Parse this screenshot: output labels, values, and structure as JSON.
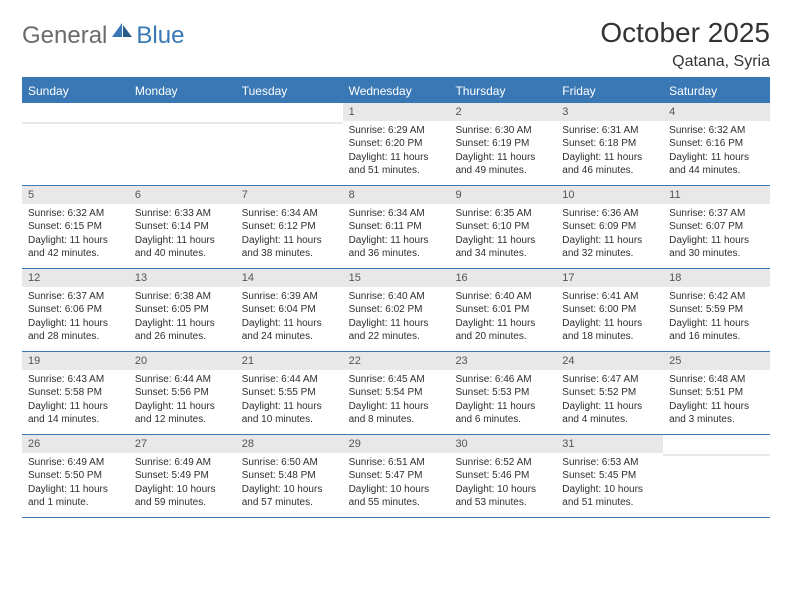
{
  "colors": {
    "header_blue": "#3a78b5",
    "logo_gray": "#6b6b6b",
    "text": "#2f2f2f",
    "daynum_bg": "#e8e8e8",
    "daynum_text": "#555555",
    "background": "#ffffff"
  },
  "logo": {
    "text_general": "General",
    "text_blue": "Blue"
  },
  "title": "October 2025",
  "location": "Qatana, Syria",
  "weekdays": [
    "Sunday",
    "Monday",
    "Tuesday",
    "Wednesday",
    "Thursday",
    "Friday",
    "Saturday"
  ],
  "weeks": [
    [
      {
        "num": "",
        "sunrise": "",
        "sunset": "",
        "daylight": ""
      },
      {
        "num": "",
        "sunrise": "",
        "sunset": "",
        "daylight": ""
      },
      {
        "num": "",
        "sunrise": "",
        "sunset": "",
        "daylight": ""
      },
      {
        "num": "1",
        "sunrise": "Sunrise: 6:29 AM",
        "sunset": "Sunset: 6:20 PM",
        "daylight": "Daylight: 11 hours and 51 minutes."
      },
      {
        "num": "2",
        "sunrise": "Sunrise: 6:30 AM",
        "sunset": "Sunset: 6:19 PM",
        "daylight": "Daylight: 11 hours and 49 minutes."
      },
      {
        "num": "3",
        "sunrise": "Sunrise: 6:31 AM",
        "sunset": "Sunset: 6:18 PM",
        "daylight": "Daylight: 11 hours and 46 minutes."
      },
      {
        "num": "4",
        "sunrise": "Sunrise: 6:32 AM",
        "sunset": "Sunset: 6:16 PM",
        "daylight": "Daylight: 11 hours and 44 minutes."
      }
    ],
    [
      {
        "num": "5",
        "sunrise": "Sunrise: 6:32 AM",
        "sunset": "Sunset: 6:15 PM",
        "daylight": "Daylight: 11 hours and 42 minutes."
      },
      {
        "num": "6",
        "sunrise": "Sunrise: 6:33 AM",
        "sunset": "Sunset: 6:14 PM",
        "daylight": "Daylight: 11 hours and 40 minutes."
      },
      {
        "num": "7",
        "sunrise": "Sunrise: 6:34 AM",
        "sunset": "Sunset: 6:12 PM",
        "daylight": "Daylight: 11 hours and 38 minutes."
      },
      {
        "num": "8",
        "sunrise": "Sunrise: 6:34 AM",
        "sunset": "Sunset: 6:11 PM",
        "daylight": "Daylight: 11 hours and 36 minutes."
      },
      {
        "num": "9",
        "sunrise": "Sunrise: 6:35 AM",
        "sunset": "Sunset: 6:10 PM",
        "daylight": "Daylight: 11 hours and 34 minutes."
      },
      {
        "num": "10",
        "sunrise": "Sunrise: 6:36 AM",
        "sunset": "Sunset: 6:09 PM",
        "daylight": "Daylight: 11 hours and 32 minutes."
      },
      {
        "num": "11",
        "sunrise": "Sunrise: 6:37 AM",
        "sunset": "Sunset: 6:07 PM",
        "daylight": "Daylight: 11 hours and 30 minutes."
      }
    ],
    [
      {
        "num": "12",
        "sunrise": "Sunrise: 6:37 AM",
        "sunset": "Sunset: 6:06 PM",
        "daylight": "Daylight: 11 hours and 28 minutes."
      },
      {
        "num": "13",
        "sunrise": "Sunrise: 6:38 AM",
        "sunset": "Sunset: 6:05 PM",
        "daylight": "Daylight: 11 hours and 26 minutes."
      },
      {
        "num": "14",
        "sunrise": "Sunrise: 6:39 AM",
        "sunset": "Sunset: 6:04 PM",
        "daylight": "Daylight: 11 hours and 24 minutes."
      },
      {
        "num": "15",
        "sunrise": "Sunrise: 6:40 AM",
        "sunset": "Sunset: 6:02 PM",
        "daylight": "Daylight: 11 hours and 22 minutes."
      },
      {
        "num": "16",
        "sunrise": "Sunrise: 6:40 AM",
        "sunset": "Sunset: 6:01 PM",
        "daylight": "Daylight: 11 hours and 20 minutes."
      },
      {
        "num": "17",
        "sunrise": "Sunrise: 6:41 AM",
        "sunset": "Sunset: 6:00 PM",
        "daylight": "Daylight: 11 hours and 18 minutes."
      },
      {
        "num": "18",
        "sunrise": "Sunrise: 6:42 AM",
        "sunset": "Sunset: 5:59 PM",
        "daylight": "Daylight: 11 hours and 16 minutes."
      }
    ],
    [
      {
        "num": "19",
        "sunrise": "Sunrise: 6:43 AM",
        "sunset": "Sunset: 5:58 PM",
        "daylight": "Daylight: 11 hours and 14 minutes."
      },
      {
        "num": "20",
        "sunrise": "Sunrise: 6:44 AM",
        "sunset": "Sunset: 5:56 PM",
        "daylight": "Daylight: 11 hours and 12 minutes."
      },
      {
        "num": "21",
        "sunrise": "Sunrise: 6:44 AM",
        "sunset": "Sunset: 5:55 PM",
        "daylight": "Daylight: 11 hours and 10 minutes."
      },
      {
        "num": "22",
        "sunrise": "Sunrise: 6:45 AM",
        "sunset": "Sunset: 5:54 PM",
        "daylight": "Daylight: 11 hours and 8 minutes."
      },
      {
        "num": "23",
        "sunrise": "Sunrise: 6:46 AM",
        "sunset": "Sunset: 5:53 PM",
        "daylight": "Daylight: 11 hours and 6 minutes."
      },
      {
        "num": "24",
        "sunrise": "Sunrise: 6:47 AM",
        "sunset": "Sunset: 5:52 PM",
        "daylight": "Daylight: 11 hours and 4 minutes."
      },
      {
        "num": "25",
        "sunrise": "Sunrise: 6:48 AM",
        "sunset": "Sunset: 5:51 PM",
        "daylight": "Daylight: 11 hours and 3 minutes."
      }
    ],
    [
      {
        "num": "26",
        "sunrise": "Sunrise: 6:49 AM",
        "sunset": "Sunset: 5:50 PM",
        "daylight": "Daylight: 11 hours and 1 minute."
      },
      {
        "num": "27",
        "sunrise": "Sunrise: 6:49 AM",
        "sunset": "Sunset: 5:49 PM",
        "daylight": "Daylight: 10 hours and 59 minutes."
      },
      {
        "num": "28",
        "sunrise": "Sunrise: 6:50 AM",
        "sunset": "Sunset: 5:48 PM",
        "daylight": "Daylight: 10 hours and 57 minutes."
      },
      {
        "num": "29",
        "sunrise": "Sunrise: 6:51 AM",
        "sunset": "Sunset: 5:47 PM",
        "daylight": "Daylight: 10 hours and 55 minutes."
      },
      {
        "num": "30",
        "sunrise": "Sunrise: 6:52 AM",
        "sunset": "Sunset: 5:46 PM",
        "daylight": "Daylight: 10 hours and 53 minutes."
      },
      {
        "num": "31",
        "sunrise": "Sunrise: 6:53 AM",
        "sunset": "Sunset: 5:45 PM",
        "daylight": "Daylight: 10 hours and 51 minutes."
      },
      {
        "num": "",
        "sunrise": "",
        "sunset": "",
        "daylight": ""
      }
    ]
  ]
}
